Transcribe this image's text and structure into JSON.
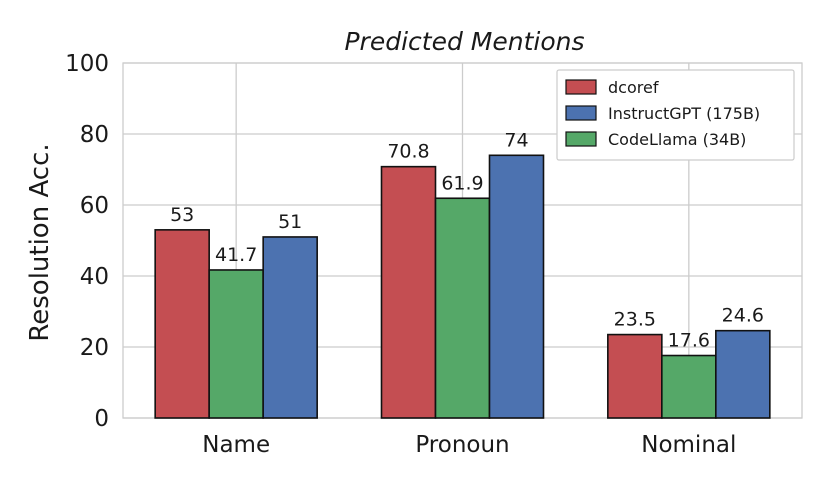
{
  "chart_data": {
    "type": "bar",
    "title": "Predicted Mentions",
    "ylabel": "Resolution Acc.",
    "xlabel": "",
    "categories": [
      "Name",
      "Pronoun",
      "Nominal"
    ],
    "ylim": [
      0,
      100
    ],
    "yticks": [
      0,
      20,
      40,
      60,
      80,
      100
    ],
    "grid": true,
    "legend_position": "top-right",
    "series": [
      {
        "name": "dcoref",
        "color": "#c44e52",
        "values": [
          53,
          70.8,
          23.5
        ]
      },
      {
        "name": "CodeLlama (34B)",
        "color": "#55a868",
        "values": [
          41.7,
          61.9,
          17.6
        ]
      },
      {
        "name": "InstructGPT (175B)",
        "color": "#4c72b0",
        "values": [
          51,
          74,
          24.6
        ]
      }
    ],
    "legend_order": [
      "dcoref",
      "InstructGPT (175B)",
      "CodeLlama (34B)"
    ]
  }
}
